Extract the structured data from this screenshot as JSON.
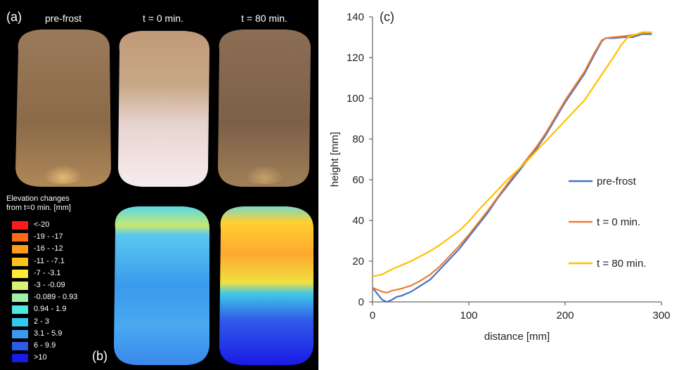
{
  "panel_a": {
    "label": "(a)",
    "titles": [
      "pre-frost",
      "t = 0 min.",
      "t = 80 min."
    ]
  },
  "panel_b": {
    "label": "(b)",
    "legend_title_line1": "Elevation changes",
    "legend_title_line2": "from t=0 min. [mm]",
    "legend": [
      {
        "label": "<-20",
        "color": "#ff1a1a"
      },
      {
        "label": "-19 - -17",
        "color": "#ff6a1a"
      },
      {
        "label": "-16 - -12",
        "color": "#ff9a1a"
      },
      {
        "label": "-11 - -7.1",
        "color": "#ffc21a"
      },
      {
        "label": "-7 - -3.1",
        "color": "#ffeb33"
      },
      {
        "label": "-3 - -0.09",
        "color": "#d9f27a"
      },
      {
        "label": "-0.089 - 0.93",
        "color": "#9ef0a8"
      },
      {
        "label": "0.94 - 1.9",
        "color": "#4ee8e0"
      },
      {
        "label": "2 - 3",
        "color": "#33c8f0"
      },
      {
        "label": "3.1 - 5.9",
        "color": "#3a9aee"
      },
      {
        "label": "6 - 9.9",
        "color": "#2f5ae8"
      },
      {
        "label": ">10",
        "color": "#1a1ae6"
      }
    ]
  },
  "chart_data": {
    "type": "line",
    "panel_label": "(c)",
    "xlabel": "distance [mm]",
    "ylabel": "height [mm]",
    "xlim": [
      0,
      300
    ],
    "ylim": [
      0,
      140
    ],
    "xticks": [
      0,
      100,
      200,
      300
    ],
    "yticks": [
      0,
      20,
      40,
      60,
      80,
      100,
      120,
      140
    ],
    "grid": false,
    "legend_position": "right-middle",
    "series": [
      {
        "name": "pre-frost",
        "color": "#4472c4",
        "points": [
          [
            0,
            7
          ],
          [
            5,
            4
          ],
          [
            10,
            1
          ],
          [
            15,
            0
          ],
          [
            20,
            1
          ],
          [
            25,
            2.5
          ],
          [
            30,
            3
          ],
          [
            40,
            5
          ],
          [
            50,
            8
          ],
          [
            60,
            11
          ],
          [
            70,
            16
          ],
          [
            80,
            21
          ],
          [
            90,
            26
          ],
          [
            100,
            32
          ],
          [
            110,
            38
          ],
          [
            120,
            44
          ],
          [
            130,
            51
          ],
          [
            140,
            57
          ],
          [
            150,
            63
          ],
          [
            160,
            69
          ],
          [
            170,
            75
          ],
          [
            180,
            82
          ],
          [
            190,
            90
          ],
          [
            200,
            98
          ],
          [
            210,
            105
          ],
          [
            220,
            112
          ],
          [
            230,
            121
          ],
          [
            238,
            128
          ],
          [
            242,
            129.5
          ],
          [
            250,
            129.5
          ],
          [
            260,
            130
          ],
          [
            270,
            130
          ],
          [
            280,
            131.5
          ],
          [
            290,
            131.5
          ]
        ]
      },
      {
        "name": "t = 0 min.",
        "color": "#ed7d31",
        "points": [
          [
            0,
            7
          ],
          [
            5,
            6
          ],
          [
            10,
            5
          ],
          [
            15,
            4.5
          ],
          [
            20,
            5.5
          ],
          [
            25,
            6
          ],
          [
            30,
            6.5
          ],
          [
            40,
            8
          ],
          [
            50,
            10.5
          ],
          [
            60,
            13.5
          ],
          [
            70,
            17.5
          ],
          [
            80,
            22.5
          ],
          [
            90,
            27.5
          ],
          [
            100,
            33
          ],
          [
            110,
            39
          ],
          [
            120,
            45
          ],
          [
            130,
            51.5
          ],
          [
            140,
            58
          ],
          [
            150,
            64
          ],
          [
            160,
            70
          ],
          [
            170,
            76
          ],
          [
            180,
            83
          ],
          [
            190,
            91
          ],
          [
            200,
            99
          ],
          [
            210,
            106
          ],
          [
            220,
            113
          ],
          [
            230,
            122
          ],
          [
            238,
            128.5
          ],
          [
            242,
            129.5
          ],
          [
            250,
            130
          ],
          [
            260,
            130.5
          ],
          [
            270,
            131
          ],
          [
            280,
            132
          ],
          [
            290,
            132
          ]
        ]
      },
      {
        "name": "t = 80 min.",
        "color": "#ffc000",
        "points": [
          [
            0,
            12.5
          ],
          [
            10,
            13.5
          ],
          [
            20,
            16
          ],
          [
            30,
            18
          ],
          [
            40,
            20
          ],
          [
            50,
            22.5
          ],
          [
            60,
            25
          ],
          [
            70,
            28
          ],
          [
            80,
            31.5
          ],
          [
            90,
            35
          ],
          [
            100,
            39.5
          ],
          [
            110,
            45
          ],
          [
            120,
            50
          ],
          [
            130,
            55
          ],
          [
            140,
            60
          ],
          [
            150,
            64.5
          ],
          [
            160,
            69
          ],
          [
            170,
            74
          ],
          [
            180,
            79
          ],
          [
            190,
            84
          ],
          [
            200,
            89
          ],
          [
            210,
            94
          ],
          [
            220,
            99
          ],
          [
            230,
            106
          ],
          [
            240,
            113
          ],
          [
            250,
            120
          ],
          [
            258,
            126
          ],
          [
            265,
            130
          ],
          [
            272,
            131
          ],
          [
            280,
            132.5
          ],
          [
            290,
            132.5
          ]
        ]
      }
    ]
  }
}
